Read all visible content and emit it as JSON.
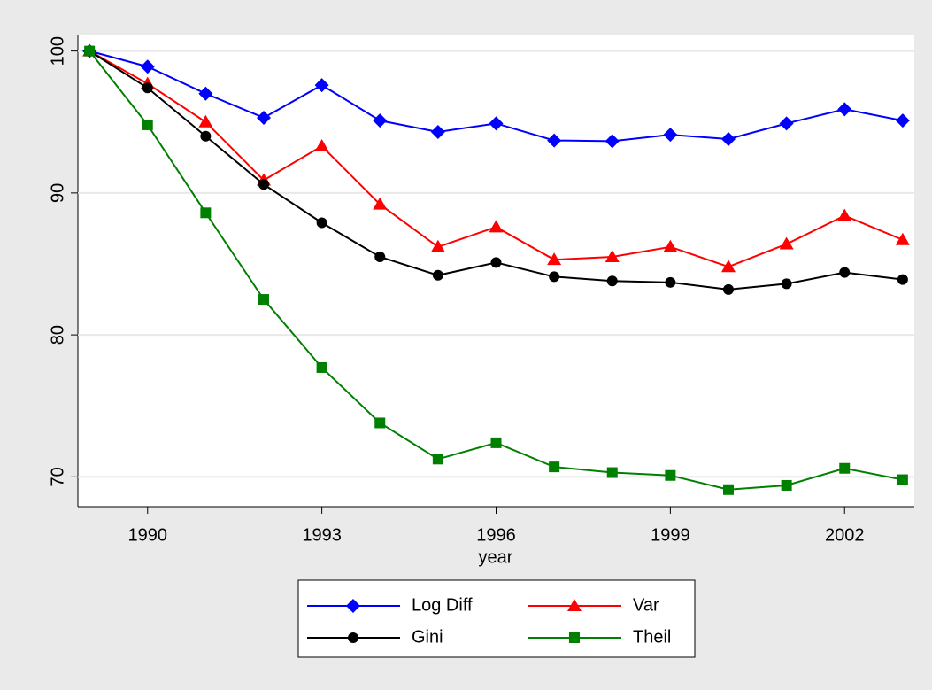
{
  "chart_data": {
    "type": "line",
    "x_label": "year",
    "x": [
      1989,
      1990,
      1991,
      1992,
      1993,
      1994,
      1995,
      1996,
      1997,
      1998,
      1999,
      2000,
      2001,
      2002,
      2003
    ],
    "series": [
      {
        "name": "Log Diff",
        "color": "#0000ff",
        "marker": "diamond",
        "values": [
          100,
          98.9,
          97.0,
          95.3,
          97.6,
          95.1,
          94.3,
          94.9,
          93.7,
          93.65,
          94.1,
          93.8,
          94.9,
          95.9,
          95.1
        ]
      },
      {
        "name": "Var",
        "color": "#ff0000",
        "marker": "triangle",
        "values": [
          100,
          97.7,
          95.0,
          90.9,
          93.3,
          89.2,
          86.2,
          87.6,
          85.3,
          85.5,
          86.2,
          84.8,
          86.4,
          88.4,
          86.7
        ]
      },
      {
        "name": "Gini",
        "color": "#000000",
        "marker": "circle",
        "values": [
          100,
          97.4,
          94.0,
          90.6,
          87.9,
          85.5,
          84.2,
          85.1,
          84.1,
          83.8,
          83.7,
          83.2,
          83.6,
          84.4,
          83.9
        ]
      },
      {
        "name": "Theil",
        "color": "#008000",
        "marker": "square",
        "values": [
          100,
          94.8,
          88.6,
          82.5,
          77.7,
          73.8,
          71.25,
          72.4,
          70.7,
          70.3,
          70.1,
          69.1,
          69.4,
          70.6,
          69.8
        ]
      }
    ],
    "xlim": [
      1988.8,
      2003.2
    ],
    "xticks": [
      1990,
      1993,
      1996,
      1999,
      2002
    ],
    "ylim": [
      67.9,
      101.1
    ],
    "yticks": [
      70,
      80,
      90,
      100
    ],
    "grid": true,
    "legend": "bottom"
  }
}
